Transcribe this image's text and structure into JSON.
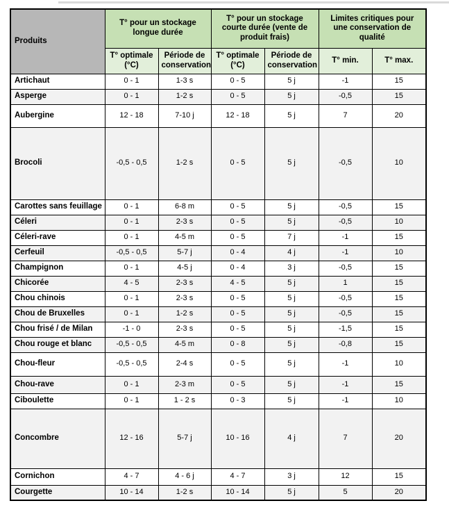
{
  "table": {
    "header": {
      "products_label": "Produits",
      "groups": [
        {
          "label": "T° pour un stockage longue durée"
        },
        {
          "label": "T° pour un stockage courte durée (vente de produit frais)"
        },
        {
          "label": "Limites critiques pour une conservation de qualité"
        }
      ],
      "subheaders": [
        "T° optimale (°C)",
        "Période de conservation",
        "T° optimale (°C)",
        "Période de conservation",
        "T° min.",
        "T° max."
      ]
    },
    "rows": [
      {
        "product": "Artichaut",
        "long_storage_t": "0 - 1",
        "long_storage_period": "1-3 s",
        "short_storage_t": "0 - 5",
        "short_storage_period": "5 j",
        "t_min": "-1",
        "t_max": "15"
      },
      {
        "product": "Asperge",
        "long_storage_t": "0 - 1",
        "long_storage_period": "1-2 s",
        "short_storage_t": "0 - 5",
        "short_storage_period": "5 j",
        "t_min": "-0,5",
        "t_max": "15"
      },
      {
        "product": "Aubergine",
        "long_storage_t": "12 - 18",
        "long_storage_period": "7-10 j",
        "short_storage_t": "12 - 18",
        "short_storage_period": "5 j",
        "t_min": "7",
        "t_max": "20"
      },
      {
        "product": "Brocoli",
        "long_storage_t": "-0,5 -  0,5",
        "long_storage_period": "1-2 s",
        "short_storage_t": "0 - 5",
        "short_storage_period": "5 j",
        "t_min": "-0,5",
        "t_max": "10"
      },
      {
        "product": "Carottes sans feuillage",
        "long_storage_t": "0 - 1",
        "long_storage_period": "6-8 m",
        "short_storage_t": "0 - 5",
        "short_storage_period": "5 j",
        "t_min": "-0,5",
        "t_max": "15"
      },
      {
        "product": "Céleri",
        "long_storage_t": "0 - 1",
        "long_storage_period": "2-3 s",
        "short_storage_t": "0 - 5",
        "short_storage_period": "5 j",
        "t_min": "-0,5",
        "t_max": "10"
      },
      {
        "product": "Céleri-rave",
        "long_storage_t": "0 - 1",
        "long_storage_period": "4-5 m",
        "short_storage_t": "0 - 5",
        "short_storage_period": "7 j",
        "t_min": "-1",
        "t_max": "15"
      },
      {
        "product": "Cerfeuil",
        "long_storage_t": "-0,5 - 0,5",
        "long_storage_period": "5-7 j",
        "short_storage_t": "0 - 4",
        "short_storage_period": "4 j",
        "t_min": "-1",
        "t_max": "10"
      },
      {
        "product": "Champignon",
        "long_storage_t": "0 - 1",
        "long_storage_period": "4-5 j",
        "short_storage_t": "0 - 4",
        "short_storage_period": "3 j",
        "t_min": "-0,5",
        "t_max": "15"
      },
      {
        "product": "Chicorée",
        "long_storage_t": "4 - 5",
        "long_storage_period": "2-3 s",
        "short_storage_t": "4 - 5",
        "short_storage_period": "5 j",
        "t_min": "1",
        "t_max": "15"
      },
      {
        "product": "Chou chinois",
        "long_storage_t": "0 - 1",
        "long_storage_period": "2-3 s",
        "short_storage_t": "0 - 5",
        "short_storage_period": "5 j",
        "t_min": "-0,5",
        "t_max": "15"
      },
      {
        "product": "Chou de Bruxelles",
        "long_storage_t": "0 - 1",
        "long_storage_period": "1-2 s",
        "short_storage_t": "0 - 5",
        "short_storage_period": "5 j",
        "t_min": "-0,5",
        "t_max": "15"
      },
      {
        "product": "Chou frisé / de Milan",
        "long_storage_t": "-1 - 0",
        "long_storage_period": "2-3 s",
        "short_storage_t": "0 - 5",
        "short_storage_period": "5 j",
        "t_min": "-1,5",
        "t_max": "15"
      },
      {
        "product": "Chou rouge et blanc",
        "long_storage_t": "-0,5 -  0,5",
        "long_storage_period": "4-5 m",
        "short_storage_t": "0 - 8",
        "short_storage_period": "5 j",
        "t_min": "-0,8",
        "t_max": "15"
      },
      {
        "product": "Chou-fleur",
        "long_storage_t": "-0,5 - 0,5",
        "long_storage_period": "2-4 s",
        "short_storage_t": "0 - 5",
        "short_storage_period": "5 j",
        "t_min": "-1",
        "t_max": "10"
      },
      {
        "product": "Chou-rave",
        "long_storage_t": "0 - 1",
        "long_storage_period": "2-3 m",
        "short_storage_t": "0 - 5",
        "short_storage_period": "5 j",
        "t_min": "-1",
        "t_max": "15"
      },
      {
        "product": "Ciboulette",
        "long_storage_t": "0 - 1",
        "long_storage_period": "1 - 2 s",
        "short_storage_t": "0 - 3",
        "short_storage_period": "5 j",
        "t_min": "-1",
        "t_max": "10"
      },
      {
        "product": "Concombre",
        "long_storage_t": "12 - 16",
        "long_storage_period": "5-7 j",
        "short_storage_t": "10 - 16",
        "short_storage_period": "4 j",
        "t_min": "7",
        "t_max": "20"
      },
      {
        "product": "Cornichon",
        "long_storage_t": "4 - 7",
        "long_storage_period": "4 - 6 j",
        "short_storage_t": "4 - 7",
        "short_storage_period": "3 j",
        "t_min": "12",
        "t_max": "15"
      },
      {
        "product": "Courgette",
        "long_storage_t": "10 - 14",
        "long_storage_period": "1-2 s",
        "short_storage_t": "10 - 14",
        "short_storage_period": "5 j",
        "t_min": "5",
        "t_max": "20"
      }
    ],
    "colors": {
      "header_green": "#c6e0b4",
      "subheader_green": "#e2efda",
      "products_gray": "#b7b7b7",
      "row_alt_gray": "#f2f2f2",
      "border": "#000000"
    }
  }
}
